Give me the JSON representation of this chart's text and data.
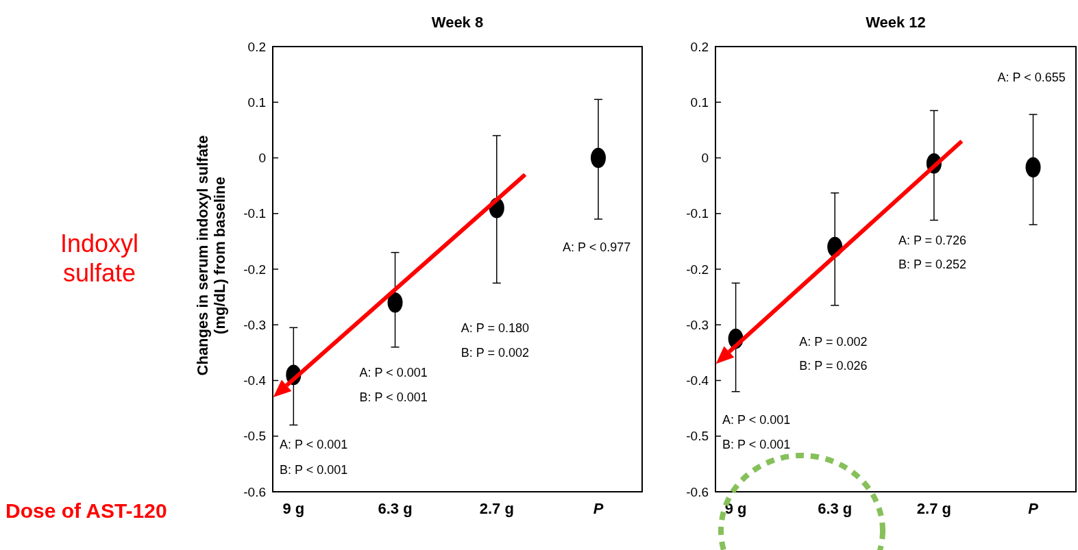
{
  "chart_data": [
    {
      "type": "scatter",
      "title": "Week 8",
      "ylabel": "Changes in serum indoxyl sulfate (mg/dL) from baseline",
      "categories": [
        "9 g",
        "6.3 g",
        "2.7 g",
        "P"
      ],
      "series": [
        {
          "color": "#000000",
          "values": [
            -0.39,
            -0.26,
            -0.09,
            0.0
          ],
          "errors": [
            [
              -0.48,
              -0.305
            ],
            [
              -0.34,
              -0.17
            ],
            [
              -0.225,
              0.04
            ],
            [
              -0.11,
              0.105
            ]
          ]
        }
      ],
      "ylim": [
        -0.6,
        0.2
      ],
      "yticks": [
        -0.6,
        -0.5,
        -0.4,
        -0.3,
        -0.2,
        -0.1,
        0,
        0.1,
        0.2
      ],
      "marker": "circle",
      "annotations": [
        "A: P < 0.001",
        "B: P < 0.001",
        "A: P < 0.001",
        "B: P < 0.001",
        "A: P = 0.180",
        "B: P = 0.002",
        "A: P < 0.977",
        "Indoxyl sulfate",
        "Dose of AST-120"
      ]
    },
    {
      "type": "scatter",
      "title": "Week 12",
      "categories": [
        "9 g",
        "6.3 g",
        "2.7 g",
        "P"
      ],
      "series": [
        {
          "color": "#000000",
          "values": [
            -0.325,
            -0.16,
            -0.01,
            -0.017
          ],
          "errors": [
            [
              -0.42,
              -0.225
            ],
            [
              -0.265,
              -0.063
            ],
            [
              -0.112,
              0.085
            ],
            [
              -0.12,
              0.078
            ]
          ]
        }
      ],
      "ylim": [
        -0.6,
        0.2
      ],
      "yticks": [
        -0.6,
        -0.5,
        -0.4,
        -0.3,
        -0.2,
        -0.1,
        0,
        0.1,
        0.2
      ],
      "marker": "circle",
      "annotations": [
        "A: P < 0.001",
        "B: P < 0.001",
        "A: P = 0.002",
        "B: P = 0.026",
        "A: P = 0.726",
        "B: P = 0.252",
        "A: P < 0.655"
      ]
    }
  ]
}
